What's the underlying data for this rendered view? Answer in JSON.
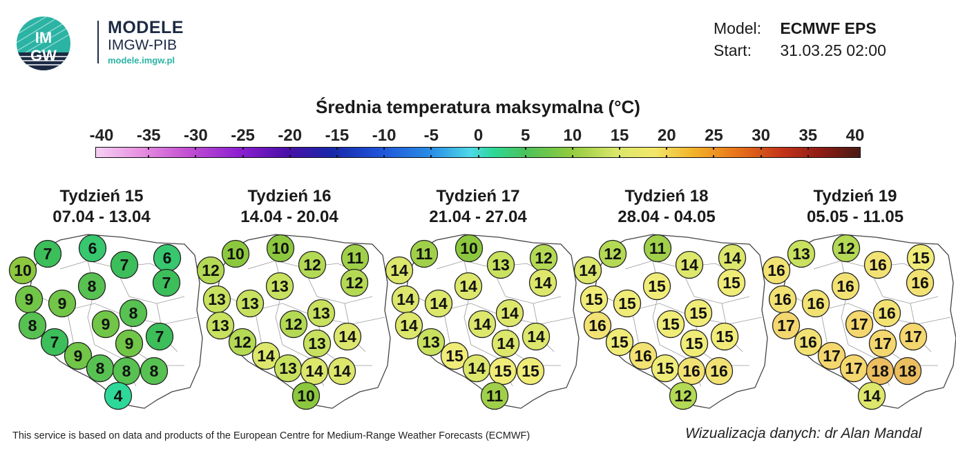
{
  "logo": {
    "mark_top": "IM",
    "mark_bottom": "GW",
    "title": "MODELE",
    "subtitle": "IMGW-PIB",
    "url": "modele.imgw.pl"
  },
  "meta": {
    "model_label": "Model:",
    "model_value": "ECMWF EPS",
    "start_label": "Start:",
    "start_value": "31.03.25 02:00"
  },
  "title": "Średnia temperatura maksymalna (°C)",
  "scale": {
    "ticks": [
      "-40",
      "-35",
      "-30",
      "-25",
      "-20",
      "-15",
      "-10",
      "-5",
      "0",
      "5",
      "10",
      "15",
      "20",
      "25",
      "30",
      "35",
      "40"
    ],
    "min": -40,
    "max": 40
  },
  "weeks": [
    {
      "name": "Tydzień 15",
      "dates": "07.04 - 13.04",
      "values": [
        7,
        6,
        7,
        6,
        10,
        8,
        7,
        9,
        9,
        8,
        8,
        9,
        9,
        7,
        7,
        9,
        8,
        8,
        8,
        4
      ]
    },
    {
      "name": "Tydzień 16",
      "dates": "14.04 - 20.04",
      "values": [
        10,
        10,
        12,
        11,
        12,
        13,
        12,
        13,
        13,
        13,
        13,
        12,
        13,
        14,
        12,
        14,
        13,
        14,
        14,
        10
      ]
    },
    {
      "name": "Tydzień 17",
      "dates": "21.04 - 27.04",
      "values": [
        11,
        10,
        13,
        12,
        14,
        14,
        14,
        14,
        14,
        14,
        14,
        14,
        14,
        14,
        13,
        15,
        14,
        15,
        15,
        11
      ]
    },
    {
      "name": "Tydzień 18",
      "dates": "28.04 - 04.05",
      "values": [
        12,
        11,
        14,
        14,
        14,
        15,
        15,
        15,
        15,
        15,
        16,
        15,
        15,
        15,
        15,
        16,
        15,
        16,
        16,
        12
      ]
    },
    {
      "name": "Tydzień 19",
      "dates": "05.05 - 11.05",
      "values": [
        13,
        12,
        16,
        15,
        16,
        16,
        16,
        16,
        16,
        16,
        17,
        17,
        17,
        17,
        16,
        17,
        17,
        18,
        18,
        14
      ]
    }
  ],
  "footer": {
    "left": "This service is based on data and products of the European Centre for Medium-Range Weather Forecasts (ECMWF)",
    "right": "Wizualizacja danych: dr Alan Mandal"
  }
}
